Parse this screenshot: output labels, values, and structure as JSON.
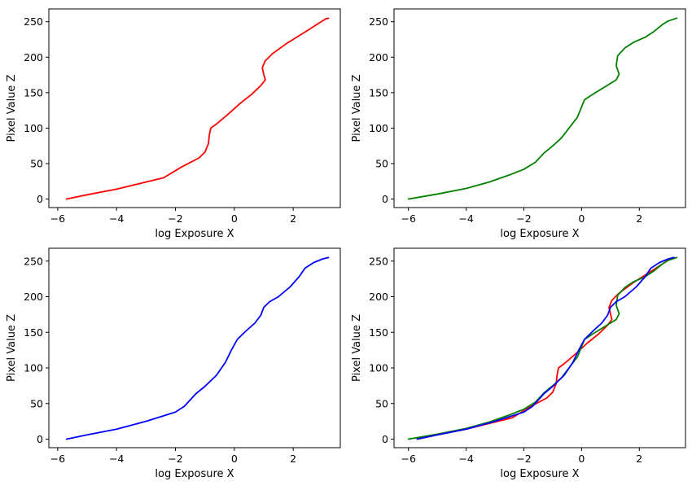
{
  "colors": {
    "red": "#ff0000",
    "green": "#008000",
    "blue": "#0000ff"
  },
  "chart_data": [
    {
      "type": "line",
      "xlabel": "log Exposure X",
      "ylabel": "Pixel Value Z",
      "xlim": [
        -6.3,
        3.6
      ],
      "ylim": [
        -12,
        268
      ],
      "xticks": [
        -6,
        -4,
        -2,
        0,
        2
      ],
      "yticks": [
        0,
        50,
        100,
        150,
        200,
        250
      ],
      "series": [
        {
          "color": "#ff0000",
          "points": [
            [
              -5.7,
              0
            ],
            [
              -5,
              6
            ],
            [
              -4,
              14
            ],
            [
              -3,
              24
            ],
            [
              -2.4,
              30
            ],
            [
              -2.2,
              35
            ],
            [
              -1.8,
              45
            ],
            [
              -1.2,
              58
            ],
            [
              -1.0,
              66
            ],
            [
              -0.88,
              78
            ],
            [
              -0.85,
              90
            ],
            [
              -0.8,
              100
            ],
            [
              -0.6,
              106
            ],
            [
              -0.2,
              120
            ],
            [
              0.2,
              135
            ],
            [
              0.6,
              148
            ],
            [
              0.9,
              160
            ],
            [
              1.05,
              168
            ],
            [
              1.0,
              176
            ],
            [
              0.95,
              185
            ],
            [
              1.05,
              195
            ],
            [
              1.3,
              205
            ],
            [
              1.8,
              220
            ],
            [
              2.5,
              238
            ],
            [
              2.8,
              246
            ],
            [
              3.1,
              254
            ],
            [
              3.2,
              255
            ]
          ]
        }
      ]
    },
    {
      "type": "line",
      "xlabel": "log Exposure X",
      "ylabel": "Pixel Value Z",
      "xlim": [
        -6.5,
        3.6
      ],
      "ylim": [
        -12,
        268
      ],
      "xticks": [
        -6,
        -4,
        -2,
        0,
        2
      ],
      "yticks": [
        0,
        50,
        100,
        150,
        200,
        250
      ],
      "series": [
        {
          "color": "#008000",
          "points": [
            [
              -6,
              0
            ],
            [
              -5,
              7
            ],
            [
              -4,
              15
            ],
            [
              -3.2,
              24
            ],
            [
              -2.5,
              34
            ],
            [
              -2,
              42
            ],
            [
              -1.6,
              52
            ],
            [
              -1.3,
              65
            ],
            [
              -1.0,
              75
            ],
            [
              -0.7,
              86
            ],
            [
              -0.4,
              102
            ],
            [
              -0.15,
              115
            ],
            [
              0,
              130
            ],
            [
              0.1,
              140
            ],
            [
              0.4,
              148
            ],
            [
              0.8,
              158
            ],
            [
              1.2,
              168
            ],
            [
              1.3,
              176
            ],
            [
              1.2,
              188
            ],
            [
              1.25,
              202
            ],
            [
              1.5,
              213
            ],
            [
              1.8,
              221
            ],
            [
              2.2,
              228
            ],
            [
              2.5,
              236
            ],
            [
              2.8,
              246
            ],
            [
              3.0,
              251
            ],
            [
              3.3,
              255
            ]
          ]
        }
      ]
    },
    {
      "type": "line",
      "xlabel": "log Exposure X",
      "ylabel": "Pixel Value Z",
      "xlim": [
        -6.3,
        3.6
      ],
      "ylim": [
        -12,
        268
      ],
      "xticks": [
        -6,
        -4,
        -2,
        0,
        2
      ],
      "yticks": [
        0,
        50,
        100,
        150,
        200,
        250
      ],
      "series": [
        {
          "color": "#0000ff",
          "points": [
            [
              -5.7,
              0
            ],
            [
              -5,
              6
            ],
            [
              -4,
              14
            ],
            [
              -3,
              25
            ],
            [
              -2,
              38
            ],
            [
              -1.7,
              46
            ],
            [
              -1.5,
              55
            ],
            [
              -1.3,
              64
            ],
            [
              -1,
              74
            ],
            [
              -0.6,
              90
            ],
            [
              -0.3,
              108
            ],
            [
              -0.1,
              125
            ],
            [
              0.1,
              140
            ],
            [
              0.4,
              152
            ],
            [
              0.7,
              163
            ],
            [
              0.9,
              174
            ],
            [
              1.0,
              185
            ],
            [
              1.2,
              193
            ],
            [
              1.5,
              200
            ],
            [
              1.9,
              214
            ],
            [
              2.2,
              228
            ],
            [
              2.4,
              240
            ],
            [
              2.7,
              248
            ],
            [
              3.0,
              253
            ],
            [
              3.2,
              255
            ]
          ]
        }
      ]
    },
    {
      "type": "line",
      "xlabel": "log Exposure X",
      "ylabel": "Pixel Value Z",
      "xlim": [
        -6.5,
        3.6
      ],
      "ylim": [
        -12,
        268
      ],
      "xticks": [
        -6,
        -4,
        -2,
        0,
        2
      ],
      "yticks": [
        0,
        50,
        100,
        150,
        200,
        250
      ],
      "series": [
        {
          "color": "#ff0000",
          "points": [
            [
              -5.7,
              0
            ],
            [
              -5,
              6
            ],
            [
              -4,
              14
            ],
            [
              -3,
              24
            ],
            [
              -2.4,
              30
            ],
            [
              -2.2,
              35
            ],
            [
              -1.8,
              45
            ],
            [
              -1.2,
              58
            ],
            [
              -1.0,
              66
            ],
            [
              -0.88,
              78
            ],
            [
              -0.85,
              90
            ],
            [
              -0.8,
              100
            ],
            [
              -0.6,
              106
            ],
            [
              -0.2,
              120
            ],
            [
              0.2,
              135
            ],
            [
              0.6,
              148
            ],
            [
              0.9,
              160
            ],
            [
              1.05,
              168
            ],
            [
              1.0,
              176
            ],
            [
              0.95,
              185
            ],
            [
              1.05,
              195
            ],
            [
              1.3,
              205
            ],
            [
              1.8,
              220
            ],
            [
              2.5,
              238
            ],
            [
              2.8,
              246
            ],
            [
              3.1,
              254
            ],
            [
              3.2,
              255
            ]
          ]
        },
        {
          "color": "#008000",
          "points": [
            [
              -6,
              0
            ],
            [
              -5,
              7
            ],
            [
              -4,
              15
            ],
            [
              -3.2,
              24
            ],
            [
              -2.5,
              34
            ],
            [
              -2,
              42
            ],
            [
              -1.6,
              52
            ],
            [
              -1.3,
              65
            ],
            [
              -1.0,
              75
            ],
            [
              -0.7,
              86
            ],
            [
              -0.4,
              102
            ],
            [
              -0.15,
              115
            ],
            [
              0,
              130
            ],
            [
              0.1,
              140
            ],
            [
              0.4,
              148
            ],
            [
              0.8,
              158
            ],
            [
              1.2,
              168
            ],
            [
              1.3,
              176
            ],
            [
              1.2,
              188
            ],
            [
              1.25,
              202
            ],
            [
              1.5,
              213
            ],
            [
              1.8,
              221
            ],
            [
              2.2,
              228
            ],
            [
              2.5,
              236
            ],
            [
              2.8,
              246
            ],
            [
              3.0,
              251
            ],
            [
              3.3,
              255
            ]
          ]
        },
        {
          "color": "#0000ff",
          "points": [
            [
              -5.7,
              0
            ],
            [
              -5,
              6
            ],
            [
              -4,
              14
            ],
            [
              -3,
              25
            ],
            [
              -2,
              38
            ],
            [
              -1.7,
              46
            ],
            [
              -1.5,
              55
            ],
            [
              -1.3,
              64
            ],
            [
              -1,
              74
            ],
            [
              -0.6,
              90
            ],
            [
              -0.3,
              108
            ],
            [
              -0.1,
              125
            ],
            [
              0.1,
              140
            ],
            [
              0.4,
              152
            ],
            [
              0.7,
              163
            ],
            [
              0.9,
              174
            ],
            [
              1.0,
              185
            ],
            [
              1.2,
              193
            ],
            [
              1.5,
              200
            ],
            [
              1.9,
              214
            ],
            [
              2.2,
              228
            ],
            [
              2.4,
              240
            ],
            [
              2.7,
              248
            ],
            [
              3.0,
              253
            ],
            [
              3.2,
              255
            ]
          ]
        }
      ]
    }
  ]
}
